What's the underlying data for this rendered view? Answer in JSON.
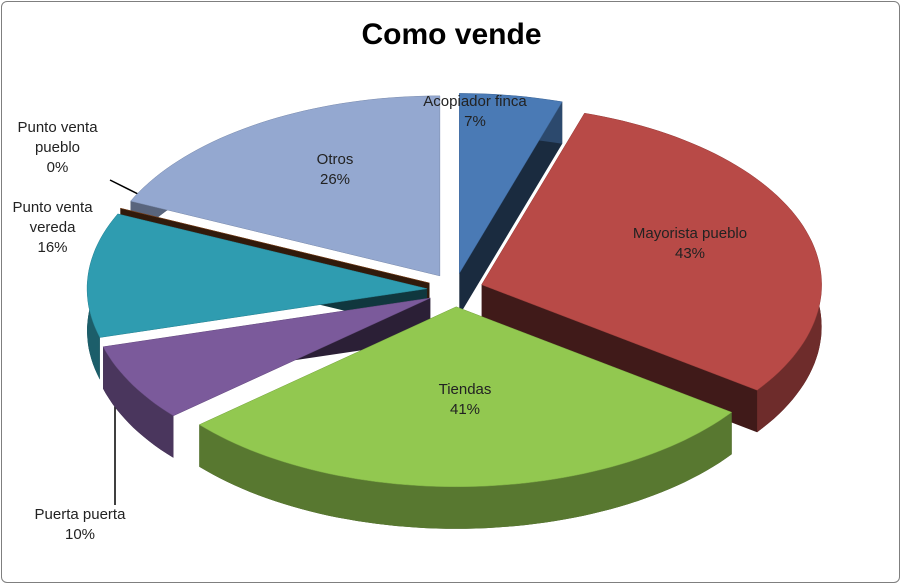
{
  "chart_data": {
    "type": "pie3d",
    "title": "Como vende",
    "categories": [
      "Acopiador finca",
      "Mayorista pueblo",
      "Tiendas",
      "Puerta puerta",
      "Punto venta vereda",
      "Punto venta pueblo",
      "Otros"
    ],
    "values": [
      7,
      43,
      41,
      10,
      16,
      0,
      26
    ],
    "value_labels": [
      "7%",
      "43%",
      "41%",
      "10%",
      "16%",
      "0%",
      "26%"
    ],
    "colors": [
      "#4a7ab5",
      "#b84a47",
      "#92c850",
      "#7b5a9b",
      "#2f9cb0",
      "#8b4a1f",
      "#94a8d0"
    ]
  }
}
